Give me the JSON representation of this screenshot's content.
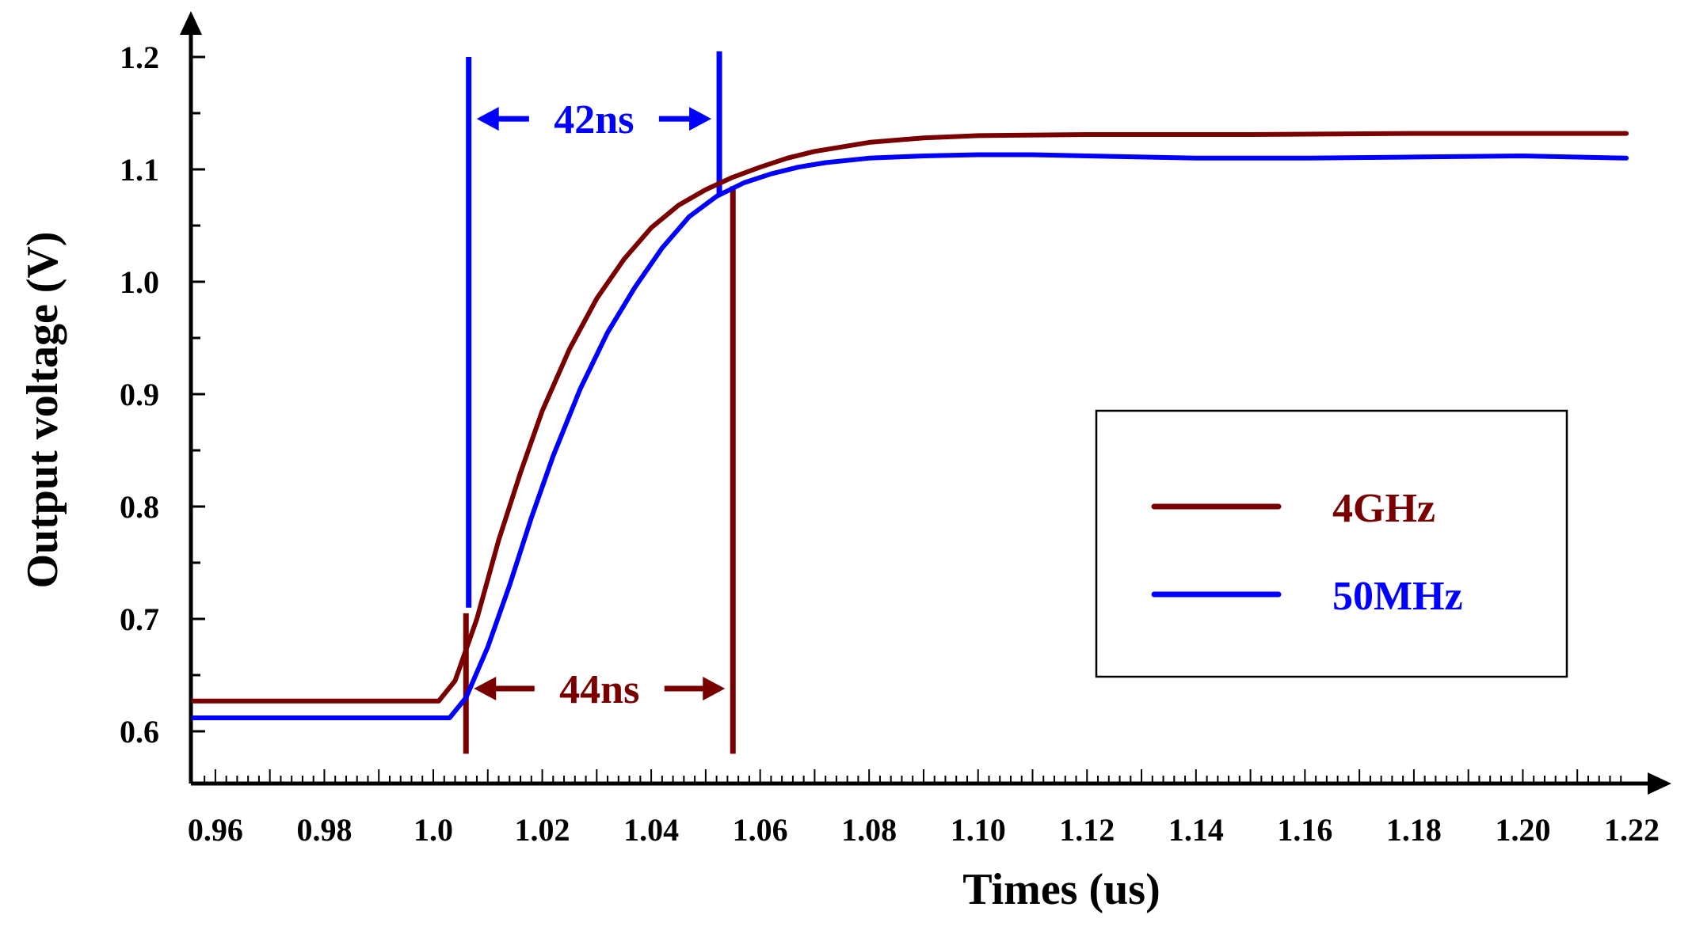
{
  "chart_data": {
    "type": "line",
    "title": "",
    "xlabel": "Times (us)",
    "ylabel": "Output voltage (V)",
    "xlim": [
      0.955,
      1.225
    ],
    "ylim": [
      0.55,
      1.24
    ],
    "xticks": [
      {
        "value": 0.96,
        "label": "0.96"
      },
      {
        "value": 0.98,
        "label": "0.98"
      },
      {
        "value": 1.0,
        "label": "1.0"
      },
      {
        "value": 1.02,
        "label": "1.02"
      },
      {
        "value": 1.04,
        "label": "1.04"
      },
      {
        "value": 1.06,
        "label": "1.06"
      },
      {
        "value": 1.08,
        "label": "1.08"
      },
      {
        "value": 1.1,
        "label": "1.10"
      },
      {
        "value": 1.12,
        "label": "1.12"
      },
      {
        "value": 1.14,
        "label": "1.14"
      },
      {
        "value": 1.16,
        "label": "1.16"
      },
      {
        "value": 1.18,
        "label": "1.18"
      },
      {
        "value": 1.2,
        "label": "1.20"
      },
      {
        "value": 1.22,
        "label": "1.22"
      }
    ],
    "yticks": [
      {
        "value": 0.6,
        "label": "0.6"
      },
      {
        "value": 0.7,
        "label": "0.7"
      },
      {
        "value": 0.8,
        "label": "0.8"
      },
      {
        "value": 0.9,
        "label": "0.9"
      },
      {
        "value": 1.0,
        "label": "1.0"
      },
      {
        "value": 1.1,
        "label": "1.1"
      },
      {
        "value": 1.2,
        "label": "1.2"
      }
    ],
    "grid": false,
    "legend_position": "right",
    "series": [
      {
        "name": "4GHz",
        "color": "#7a0000",
        "points": [
          [
            0.956,
            0.627
          ],
          [
            1.001,
            0.627
          ],
          [
            1.004,
            0.645
          ],
          [
            1.008,
            0.7
          ],
          [
            1.012,
            0.77
          ],
          [
            1.016,
            0.83
          ],
          [
            1.02,
            0.885
          ],
          [
            1.025,
            0.94
          ],
          [
            1.03,
            0.985
          ],
          [
            1.035,
            1.02
          ],
          [
            1.04,
            1.048
          ],
          [
            1.045,
            1.068
          ],
          [
            1.05,
            1.082
          ],
          [
            1.055,
            1.093
          ],
          [
            1.06,
            1.102
          ],
          [
            1.065,
            1.11
          ],
          [
            1.07,
            1.116
          ],
          [
            1.08,
            1.124
          ],
          [
            1.09,
            1.128
          ],
          [
            1.1,
            1.13
          ],
          [
            1.12,
            1.131
          ],
          [
            1.15,
            1.131
          ],
          [
            1.18,
            1.132
          ],
          [
            1.219,
            1.132
          ]
        ]
      },
      {
        "name": "50MHz",
        "color": "#0000ff",
        "points": [
          [
            0.956,
            0.612
          ],
          [
            1.003,
            0.612
          ],
          [
            1.006,
            0.63
          ],
          [
            1.01,
            0.675
          ],
          [
            1.014,
            0.73
          ],
          [
            1.018,
            0.79
          ],
          [
            1.022,
            0.845
          ],
          [
            1.027,
            0.905
          ],
          [
            1.032,
            0.955
          ],
          [
            1.037,
            0.995
          ],
          [
            1.042,
            1.03
          ],
          [
            1.047,
            1.058
          ],
          [
            1.052,
            1.076
          ],
          [
            1.057,
            1.088
          ],
          [
            1.062,
            1.096
          ],
          [
            1.067,
            1.102
          ],
          [
            1.072,
            1.106
          ],
          [
            1.08,
            1.11
          ],
          [
            1.09,
            1.112
          ],
          [
            1.1,
            1.113
          ],
          [
            1.11,
            1.113
          ],
          [
            1.12,
            1.112
          ],
          [
            1.14,
            1.11
          ],
          [
            1.16,
            1.11
          ],
          [
            1.18,
            1.111
          ],
          [
            1.2,
            1.112
          ],
          [
            1.219,
            1.11
          ]
        ]
      }
    ],
    "markers": [
      {
        "series": "50MHz",
        "color": "#0000ff",
        "x": 1.0065,
        "y_from": 0.71,
        "y_to": 1.2
      },
      {
        "series": "50MHz",
        "color": "#0000ff",
        "x": 1.0525,
        "y_from": 1.078,
        "y_to": 1.205
      },
      {
        "series": "4GHz",
        "color": "#7a0000",
        "x": 1.006,
        "y_from": 0.58,
        "y_to": 0.705
      },
      {
        "series": "4GHz",
        "color": "#7a0000",
        "x": 1.055,
        "y_from": 0.58,
        "y_to": 1.085
      }
    ],
    "annotations": [
      {
        "text": "42ns",
        "color": "#0000ff",
        "x_from": 1.0065,
        "x_to": 1.0525,
        "y": 1.145
      },
      {
        "text": "44ns",
        "color": "#7a0000",
        "x_from": 1.006,
        "x_to": 1.055,
        "y": 0.638
      }
    ]
  }
}
